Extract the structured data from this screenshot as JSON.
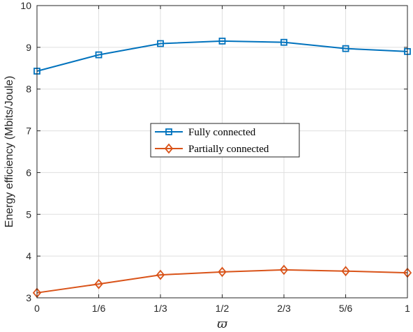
{
  "chart_data": {
    "type": "line",
    "title": "",
    "xlabel": "ϖ",
    "ylabel": "Energy efficiency (Mbits/Joule)",
    "x": [
      0,
      0.16667,
      0.33333,
      0.5,
      0.66667,
      0.83333,
      1
    ],
    "x_tick_labels": [
      "0",
      "1/6",
      "1/3",
      "1/2",
      "2/3",
      "5/6",
      "1"
    ],
    "y_ticks": [
      3,
      4,
      5,
      6,
      7,
      8,
      9,
      10
    ],
    "xlim": [
      0,
      1
    ],
    "ylim": [
      3,
      10
    ],
    "grid": true,
    "legend_position": "center",
    "series": [
      {
        "name": "Fully connected",
        "color": "#0072BD",
        "marker": "square",
        "values": [
          8.43,
          8.82,
          9.09,
          9.15,
          9.12,
          8.97,
          8.9
        ]
      },
      {
        "name": "Partially connected",
        "color": "#D95319",
        "marker": "diamond",
        "values": [
          3.12,
          3.33,
          3.55,
          3.62,
          3.67,
          3.64,
          3.6
        ]
      }
    ]
  }
}
